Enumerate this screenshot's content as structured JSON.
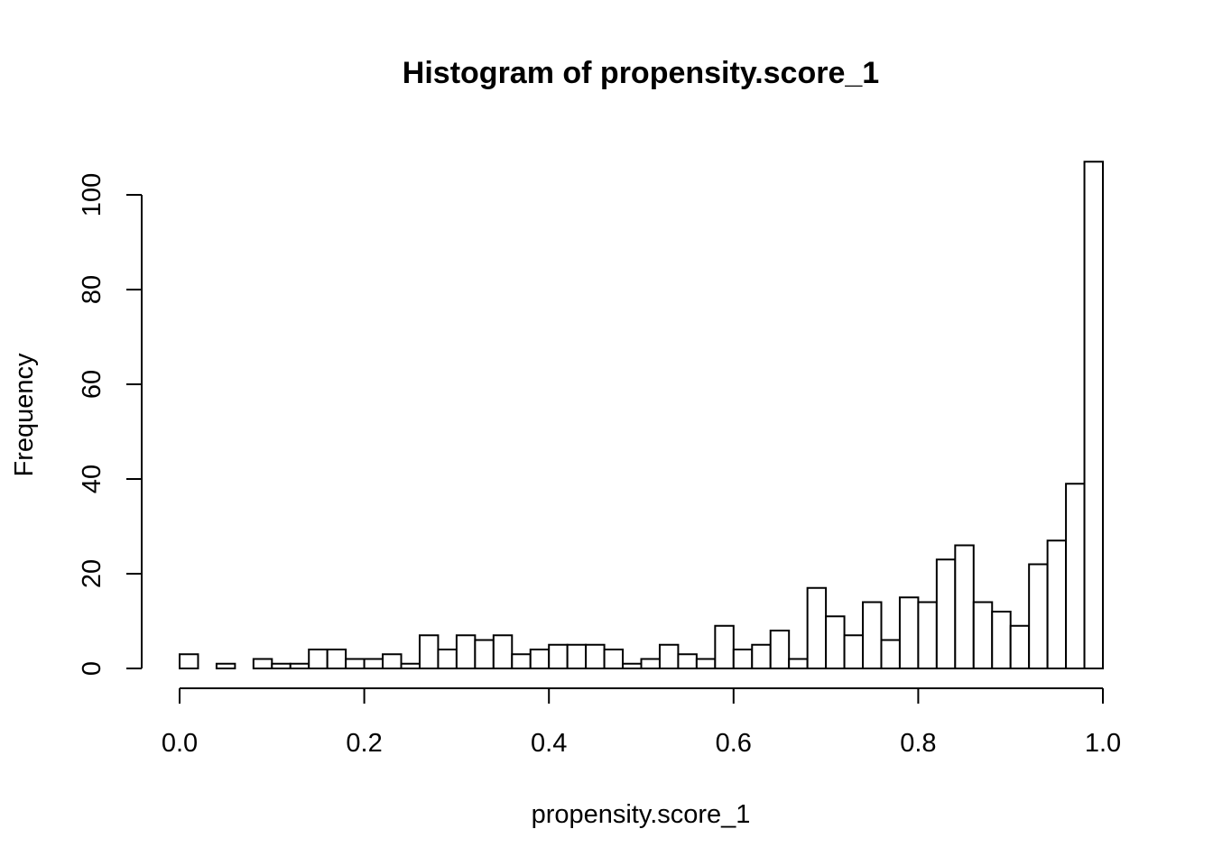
{
  "chart_data": {
    "type": "bar",
    "title": "Histogram of propensity.score_1",
    "xlabel": "propensity.score_1",
    "ylabel": "Frequency",
    "xlim": [
      0,
      1
    ],
    "ylim": [
      0,
      107
    ],
    "bin_width": 0.02,
    "x_ticks": [
      "0.0",
      "0.2",
      "0.4",
      "0.6",
      "0.8",
      "1.0"
    ],
    "x_tick_values": [
      0,
      0.2,
      0.4,
      0.6,
      0.8,
      1.0
    ],
    "y_ticks": [
      "0",
      "20",
      "40",
      "60",
      "80",
      "100"
    ],
    "y_tick_values": [
      0,
      20,
      40,
      60,
      80,
      100
    ],
    "bin_starts": [
      0.0,
      0.02,
      0.04,
      0.06,
      0.08,
      0.1,
      0.12,
      0.14,
      0.16,
      0.18,
      0.2,
      0.22,
      0.24,
      0.26,
      0.28,
      0.3,
      0.32,
      0.34,
      0.36,
      0.38,
      0.4,
      0.42,
      0.44,
      0.46,
      0.48,
      0.5,
      0.52,
      0.54,
      0.56,
      0.58,
      0.6,
      0.62,
      0.64,
      0.66,
      0.68,
      0.7,
      0.72,
      0.74,
      0.76,
      0.78,
      0.8,
      0.82,
      0.84,
      0.86,
      0.88,
      0.9,
      0.92,
      0.94,
      0.96,
      0.98
    ],
    "values": [
      3,
      0,
      1,
      0,
      2,
      1,
      1,
      4,
      4,
      2,
      2,
      3,
      1,
      7,
      4,
      7,
      6,
      7,
      3,
      4,
      5,
      5,
      5,
      4,
      1,
      2,
      5,
      3,
      2,
      9,
      4,
      5,
      8,
      2,
      17,
      11,
      7,
      14,
      6,
      15,
      14,
      23,
      26,
      14,
      12,
      9,
      22,
      27,
      39,
      107
    ],
    "grid": false,
    "legend": "none",
    "bar_fill": "#ffffff",
    "bar_stroke": "#000000"
  }
}
